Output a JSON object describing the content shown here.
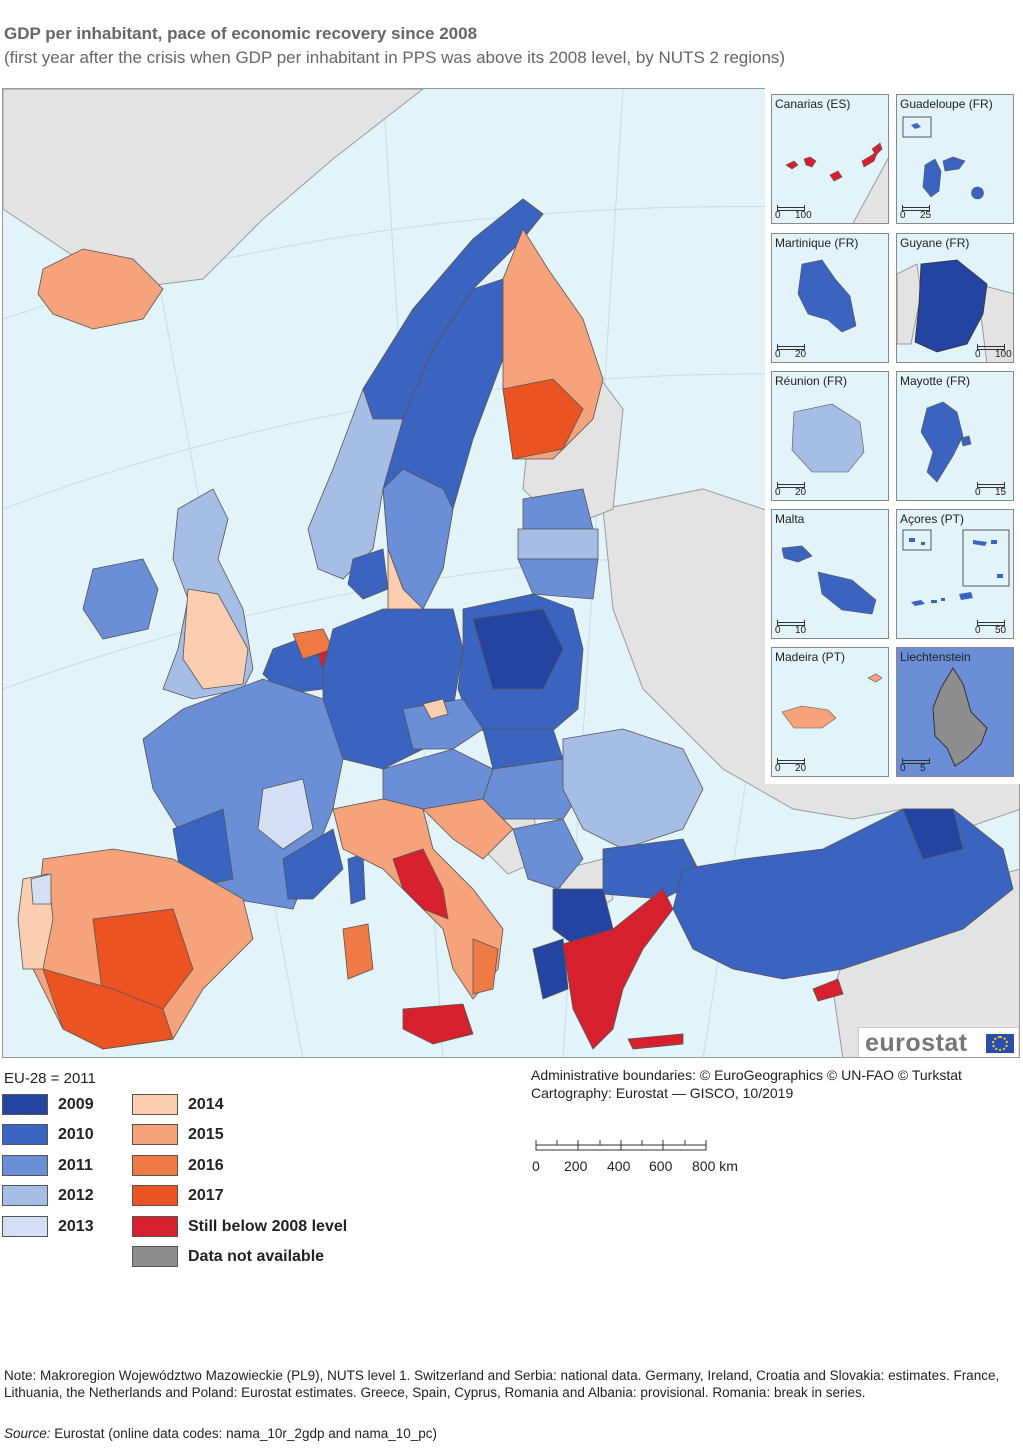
{
  "title": "GDP per inhabitant, pace of economic recovery since 2008",
  "subtitle": "(first year after the crisis when GDP per inhabitant in PPS was above its 2008 level, by NUTS 2 regions)",
  "colors": {
    "c2009": "#2344a0",
    "c2010": "#3a64c0",
    "c2011": "#6a8fd6",
    "c2012": "#a6bde6",
    "c2013": "#d4def4",
    "c2014": "#fbcdb1",
    "c2015": "#f6a27b",
    "c2016": "#f07a45",
    "c2017": "#eb5322",
    "still_below": "#d7202e",
    "na": "#8e8e8e",
    "sea": "#e2f3fa",
    "nonmember": "#e3e3e3"
  },
  "insets": [
    {
      "label": "Canarias (ES)",
      "scale": [
        "0",
        "100"
      ]
    },
    {
      "label": "Guadeloupe (FR)",
      "scale": [
        "0",
        "25"
      ]
    },
    {
      "label": "Martinique (FR)",
      "scale": [
        "0",
        "20"
      ]
    },
    {
      "label": "Guyane (FR)",
      "scale": [
        "0",
        "100"
      ]
    },
    {
      "label": "Réunion (FR)",
      "scale": [
        "0",
        "20"
      ]
    },
    {
      "label": "Mayotte (FR)",
      "scale": [
        "0",
        "15"
      ]
    },
    {
      "label": "Malta",
      "scale": [
        "0",
        "10"
      ]
    },
    {
      "label": "Açores (PT)",
      "scale": [
        "0",
        "50"
      ]
    },
    {
      "label": "Madeira (PT)",
      "scale": [
        "0",
        "20"
      ]
    },
    {
      "label": "Liechtenstein",
      "scale": [
        "0",
        "5"
      ]
    }
  ],
  "logo": "eurostat",
  "legend": {
    "eu_average": "EU-28 = 2011",
    "items": [
      {
        "label": "2009",
        "color": "#2344a0"
      },
      {
        "label": "2010",
        "color": "#3a64c0"
      },
      {
        "label": "2011",
        "color": "#6a8fd6"
      },
      {
        "label": "2012",
        "color": "#a6bde6"
      },
      {
        "label": "2013",
        "color": "#d4def4"
      },
      {
        "label": "2014",
        "color": "#fbcdb1"
      },
      {
        "label": "2015",
        "color": "#f6a27b"
      },
      {
        "label": "2016",
        "color": "#f07a45"
      },
      {
        "label": "2017",
        "color": "#eb5322"
      },
      {
        "label": "Still below 2008 level",
        "color": "#d7202e"
      },
      {
        "label": "Data not available",
        "color": "#8e8e8e"
      }
    ]
  },
  "attribution": {
    "line1": "Administrative boundaries: © EuroGeographics © UN-FAO © Turkstat",
    "line2": "Cartography: Eurostat — GISCO, 10/2019"
  },
  "scale_bar": {
    "ticks": [
      "0",
      "200",
      "400",
      "600",
      "800 km"
    ]
  },
  "note": "Note: Makroregion Województwo Mazowieckie (PL9), NUTS level 1. Switzerland and Serbia: national data. Germany, Ireland, Croatia and Slovakia: estimates. France, Lithuania, the Netherlands and Poland: Eurostat estimates. Greece, Spain, Cyprus, Romania and Albania: provisional. Romania: break in series.",
  "source": {
    "label": "Source:",
    "text": " Eurostat (online data codes: nama_10r_2gdp and nama_10_pc)"
  }
}
